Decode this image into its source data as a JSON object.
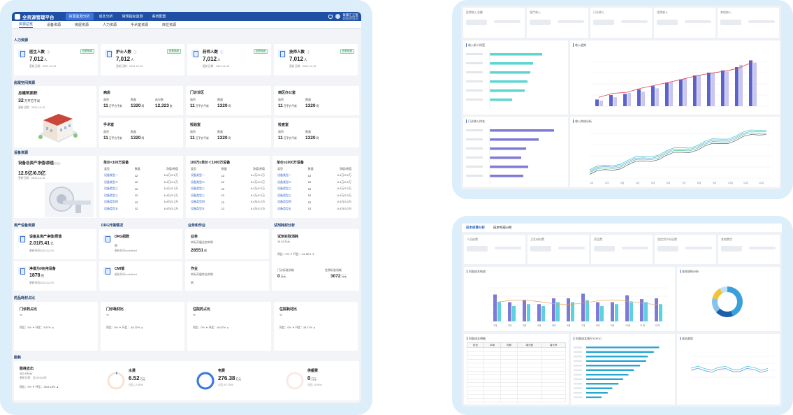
{
  "app": {
    "title": "全资源管理平台",
    "nav_tabs": [
      "资源监测分析",
      "成本分析",
      "常规指标监测",
      "系统配置"
    ],
    "user_name": "联赢汇正医",
    "user_role": "超级管理员"
  },
  "subtabs": [
    "资源总览",
    "设备资源",
    "房屋资源",
    "人力资源",
    "手术室资源",
    "床位资源"
  ],
  "hr": {
    "section": "人力资源",
    "cards": [
      {
        "title": "医生人数",
        "value": "7,012",
        "unit": "人",
        "date": "更新日期：2021-10-15",
        "tag": "查看明细"
      },
      {
        "title": "护士人数",
        "value": "7,012",
        "unit": "人",
        "date": "更新日期：2021-10-15",
        "tag": "查看明细"
      },
      {
        "title": "药师人数",
        "value": "7,012",
        "unit": "人",
        "date": "更新日期：2021-10-15",
        "tag": "查看明细"
      },
      {
        "title": "技师人数",
        "value": "7,012",
        "unit": "人",
        "date": "更新日期：2021-10-15",
        "tag": "查看明细"
      }
    ]
  },
  "space": {
    "section": "房屋空间资源",
    "total_title": "总建筑面积",
    "total_value": "32",
    "total_unit": "万平方千米",
    "total_date": "更新日期：2021-10-15",
    "ward": {
      "title": "病房",
      "k1": "面积",
      "k2": "数量",
      "k3": "床位数",
      "v1": "11",
      "u1": "万平方千米",
      "v2": "1320",
      "u2": "间",
      "v3": "12,323",
      "u3": "张"
    },
    "clinic": {
      "title": "门诊诊区",
      "k1": "面积",
      "k2": "数量",
      "v1": "11",
      "u1": "万平方千米",
      "v2": "1320",
      "u2": "间"
    },
    "office": {
      "title": "病区办公室",
      "k1": "面积",
      "k2": "数量",
      "v1": "11",
      "u1": "万平方千米",
      "v2": "1320",
      "u2": "间"
    },
    "or": {
      "title": "手术室",
      "k1": "面积",
      "k2": "数量",
      "v1": "11",
      "u1": "万平方千米",
      "v2": "1320",
      "u2": "间"
    },
    "lab": {
      "title": "检验室",
      "k1": "面积",
      "k2": "数量",
      "v1": "11",
      "u1": "万平方千米",
      "v2": "1320",
      "u2": "间"
    },
    "exam": {
      "title": "检查室",
      "k1": "面积",
      "k2": "数量",
      "v1": "11",
      "u1": "万平方千米",
      "v2": "1320",
      "u2": "间"
    }
  },
  "equip": {
    "section": "设备资源",
    "total_title": "设备总资产净值/原值",
    "total_sub": "(亿元)",
    "total_value": "12.5亿/6.5亿",
    "total_date": "更新日期：2021-10-15",
    "tables": [
      {
        "title": "单价<100万设备",
        "headers": [
          "类型",
          "数量",
          "净值/原值"
        ],
        "rows": [
          [
            "设备类型一",
            "12",
            "6.4万/3.2万"
          ],
          [
            "设备类型二",
            "12",
            "6.4万/3.2万"
          ],
          [
            "设备类型三",
            "12",
            "6.4万/3.2万"
          ],
          [
            "设备类型三",
            "12",
            "6.4万/3.2万"
          ],
          [
            "设备类型四",
            "12",
            "6.4万/3.2万"
          ],
          [
            "设备类型五",
            "12",
            "6.4万/3.2万"
          ]
        ]
      },
      {
        "title": "100万≤单价＜1000万设备",
        "headers": [
          "类型",
          "数量",
          "净值/原值"
        ],
        "rows": [
          [
            "设备类型一",
            "12",
            "6.4万/3.2万"
          ],
          [
            "设备类型二",
            "12",
            "6.4万/3.2万"
          ],
          [
            "设备类型三",
            "12",
            "6.4万/3.2万"
          ],
          [
            "设备类型三",
            "12",
            "6.4万/3.2万"
          ],
          [
            "设备类型四",
            "12",
            "6.4万/3.2万"
          ],
          [
            "设备类型五",
            "12",
            "6.4万/3.2万"
          ]
        ]
      },
      {
        "title": "单价≥1000万设备",
        "headers": [
          "类型",
          "数量",
          "净值/原值"
        ],
        "rows": [
          [
            "设备类型一",
            "12",
            "6.4万/3.2万"
          ],
          [
            "设备类型二",
            "12",
            "6.4万/3.2万"
          ],
          [
            "设备类型三",
            "12",
            "6.4万/3.2万"
          ],
          [
            "设备类型三",
            "12",
            "6.4万/3.2万"
          ],
          [
            "设备类型四",
            "12",
            "6.4万/3.2万"
          ],
          [
            "设备类型五",
            "12",
            "6.4万/3.2万"
          ]
        ]
      }
    ]
  },
  "assets": {
    "section": "资产设备资源",
    "a1_title": "设备总资产净值/原值",
    "a1_value": "2.01/5.41",
    "a1_unit": "亿",
    "a1_date": "更新时间2023-02-09",
    "a2_title": "净值为0在用设备",
    "a2_value": "1878",
    "a2_unit": "台",
    "a2_date": "更新时间2023-02-09"
  },
  "drg": {
    "section": "DRG开展情况",
    "d1_title": "DRG组数",
    "d1_value": "例",
    "d1_date": "更新时间undefined",
    "d2_title": "CMI值",
    "d2_date": "更新时间undefined"
  },
  "biz": {
    "section": "业务和作业",
    "b1_title": "业务",
    "b1_sub": "实际开展业务实例",
    "b1_value": "28551",
    "b1_unit": "例",
    "b2_title": "作业",
    "b2_sub": "实际开展作业实例",
    "b2_value": "例"
  },
  "reagent": {
    "section": "试剂耗材分析",
    "r1_title": "试剂实际消耗",
    "r1_value": "14.41万元",
    "r1_yoy": "同比：0%",
    "r1_mom": "环比：-94.82%",
    "r2_k1": "门诊标准消耗",
    "r2_k2": "住院标准消耗",
    "r2_v1": "0",
    "r2_u1": "万元",
    "r2_v2": "3072",
    "r2_u2": "万元"
  },
  "drug": {
    "section": "药品耗材占比",
    "cards": [
      {
        "title": "门诊药占比",
        "unit": "%",
        "yoy": "同比：0%",
        "mom": "环比：3.67%"
      },
      {
        "title": "门诊耗材比",
        "unit": "%",
        "yoy": "同比：0%",
        "mom": "环比：-45.22%"
      },
      {
        "title": "住院药占比",
        "unit": "%",
        "yoy": "同比：0%",
        "mom": "环比：16.07%"
      },
      {
        "title": "住院耗材比",
        "unit": "%",
        "yoy": "同比：0%",
        "mom": "环比：28.17%"
      }
    ]
  },
  "energy": {
    "section": "能耗",
    "total_title": "能耗支出",
    "total_value": "282.9万元",
    "total_date": "更新日期：总计2023年",
    "total_yoy": "同比：0%",
    "total_mom": "环比：1361.18%",
    "items": [
      {
        "title": "水费",
        "value": "6.52",
        "unit": "万元",
        "pct": "占比: 2.30%",
        "color": "#f3c7a8",
        "level": 0.023
      },
      {
        "title": "电费",
        "value": "276.38",
        "unit": "万元",
        "pct": "占比:97.70%",
        "color": "#3b7ae0",
        "level": 0.977
      },
      {
        "title": "供暖费",
        "value": "0",
        "unit": "万元",
        "pct": "占比: 0.00%",
        "color": "#f6d3cf",
        "level": 0
      }
    ]
  },
  "right_top": {
    "kpi_titles": [
      "医院收入总额",
      "医疗收入",
      "门诊收入",
      "住院收入",
      "其他收入"
    ],
    "chart1_title": "收入前十科室",
    "chart2_title": "收入趋势",
    "chart3_title": "门诊收入排名",
    "chart4_title": "收入构成分析",
    "chart4_months": [
      "1月",
      "2月",
      "3月",
      "4月",
      "5月",
      "6月",
      "7月",
      "8月",
      "9月",
      "10月",
      "11月",
      "12月"
    ]
  },
  "right_bottom": {
    "tabs": [
      "成本核算分析",
      "成本构成分析"
    ],
    "kpi_titles": [
      "人员经费",
      "卫生材料费",
      "药品费",
      "固定资产折旧费",
      "其他费用"
    ],
    "bar_title": "科室成本构成",
    "bar_months": [
      "1月",
      "2月",
      "3月",
      "4月",
      "5月",
      "6月",
      "7月",
      "8月",
      "9月",
      "10月",
      "11月",
      "12月"
    ],
    "pie_title": "成本结构分析",
    "table_title": "科室成本明细",
    "table_headers": [
      "科室",
      "本期",
      "同期",
      "增长额",
      "增长率"
    ],
    "rank_title": "科室成本排行TOP10",
    "line_title": "成本趋势"
  }
}
